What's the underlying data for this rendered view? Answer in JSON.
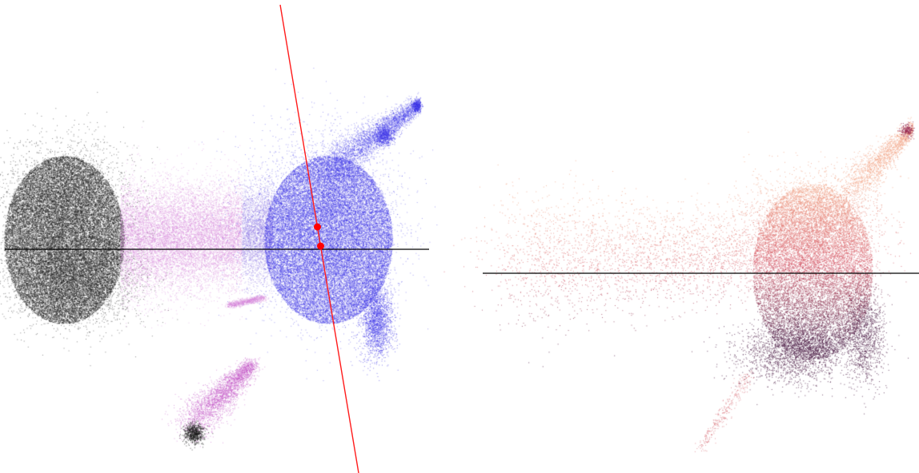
{
  "chart_data": [
    {
      "type": "scatter",
      "panel": "left",
      "point_colors": {
        "dense_left_cluster": "#1a1a1a",
        "bridge": "#d27fd8",
        "right_cluster": "#3a32e6",
        "small_bottom_cluster": "#c24fc6"
      },
      "reference_lines": [
        {
          "name": "horizontal-axis-line",
          "color": "#000000"
        },
        {
          "name": "projection-line",
          "color": "#ff0000"
        }
      ],
      "markers": [
        {
          "name": "upper-point",
          "color": "#ff0000"
        },
        {
          "name": "lower-point",
          "color": "#ff0000"
        }
      ]
    },
    {
      "type": "scatter",
      "panel": "right",
      "point_colors": {
        "light": "#f1a384",
        "mid": "#d45a6a",
        "dark": "#4a1a43"
      },
      "reference_lines": [
        {
          "name": "horizontal-axis-line",
          "color": "#000000"
        }
      ]
    }
  ]
}
